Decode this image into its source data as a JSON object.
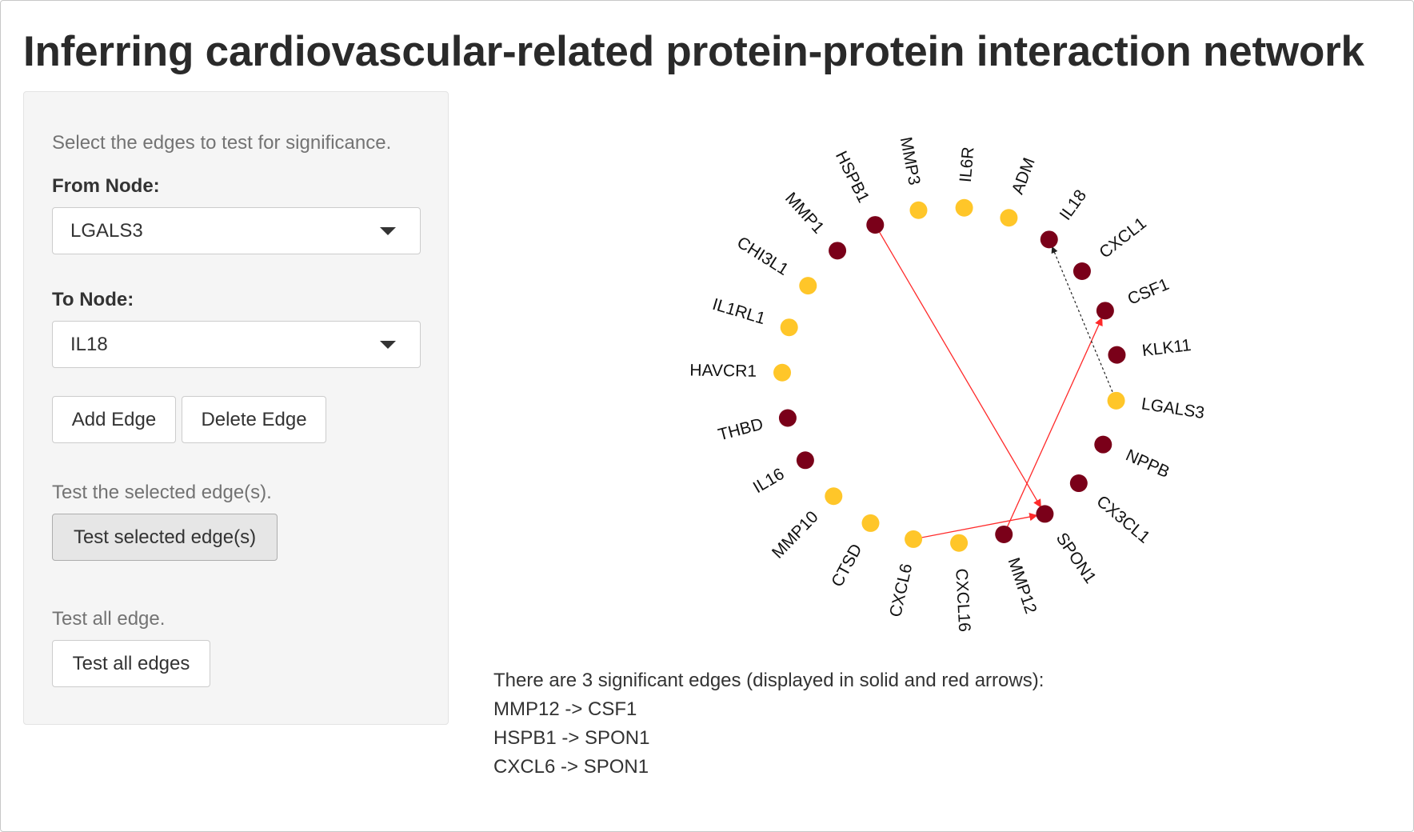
{
  "title": "Inferring cardiovascular-related protein-protein interaction network",
  "sidebar": {
    "help_select": "Select the edges to test for significance.",
    "from_label": "From Node:",
    "from_value": "LGALS3",
    "to_label": "To Node:",
    "to_value": "IL18",
    "add_edge": "Add Edge",
    "delete_edge": "Delete Edge",
    "help_test_selected": "Test the selected edge(s).",
    "test_selected": "Test selected edge(s)",
    "help_test_all": "Test all edge.",
    "test_all": "Test all edges"
  },
  "colors": {
    "dark_node": "#7a0019",
    "light_node": "#ffc629",
    "significant_edge": "#ff2a2a",
    "candidate_edge": "#222222"
  },
  "network": {
    "nodes": [
      {
        "name": "HSPB1",
        "group": "dark"
      },
      {
        "name": "MMP3",
        "group": "light"
      },
      {
        "name": "IL6R",
        "group": "light"
      },
      {
        "name": "ADM",
        "group": "light"
      },
      {
        "name": "IL18",
        "group": "dark"
      },
      {
        "name": "CXCL1",
        "group": "dark"
      },
      {
        "name": "CSF1",
        "group": "dark"
      },
      {
        "name": "KLK11",
        "group": "dark"
      },
      {
        "name": "LGALS3",
        "group": "light"
      },
      {
        "name": "NPPB",
        "group": "dark"
      },
      {
        "name": "CX3CL1",
        "group": "dark"
      },
      {
        "name": "SPON1",
        "group": "dark"
      },
      {
        "name": "MMP12",
        "group": "dark"
      },
      {
        "name": "CXCL16",
        "group": "light"
      },
      {
        "name": "CXCL6",
        "group": "light"
      },
      {
        "name": "CTSD",
        "group": "light"
      },
      {
        "name": "MMP10",
        "group": "light"
      },
      {
        "name": "IL16",
        "group": "dark"
      },
      {
        "name": "THBD",
        "group": "dark"
      },
      {
        "name": "HAVCR1",
        "group": "light"
      },
      {
        "name": "IL1RL1",
        "group": "light"
      },
      {
        "name": "CHI3L1",
        "group": "light"
      },
      {
        "name": "MMP1",
        "group": "dark"
      }
    ],
    "edges": [
      {
        "from": "HSPB1",
        "to": "SPON1",
        "significant": true
      },
      {
        "from": "MMP12",
        "to": "CSF1",
        "significant": true
      },
      {
        "from": "CXCL6",
        "to": "SPON1",
        "significant": true
      },
      {
        "from": "LGALS3",
        "to": "IL18",
        "significant": false
      }
    ]
  },
  "results": {
    "summary": "There are 3 significant edges (displayed in solid and red arrows):",
    "edges": [
      "MMP12 -> CSF1",
      "HSPB1 -> SPON1",
      "CXCL6 -> SPON1"
    ]
  }
}
